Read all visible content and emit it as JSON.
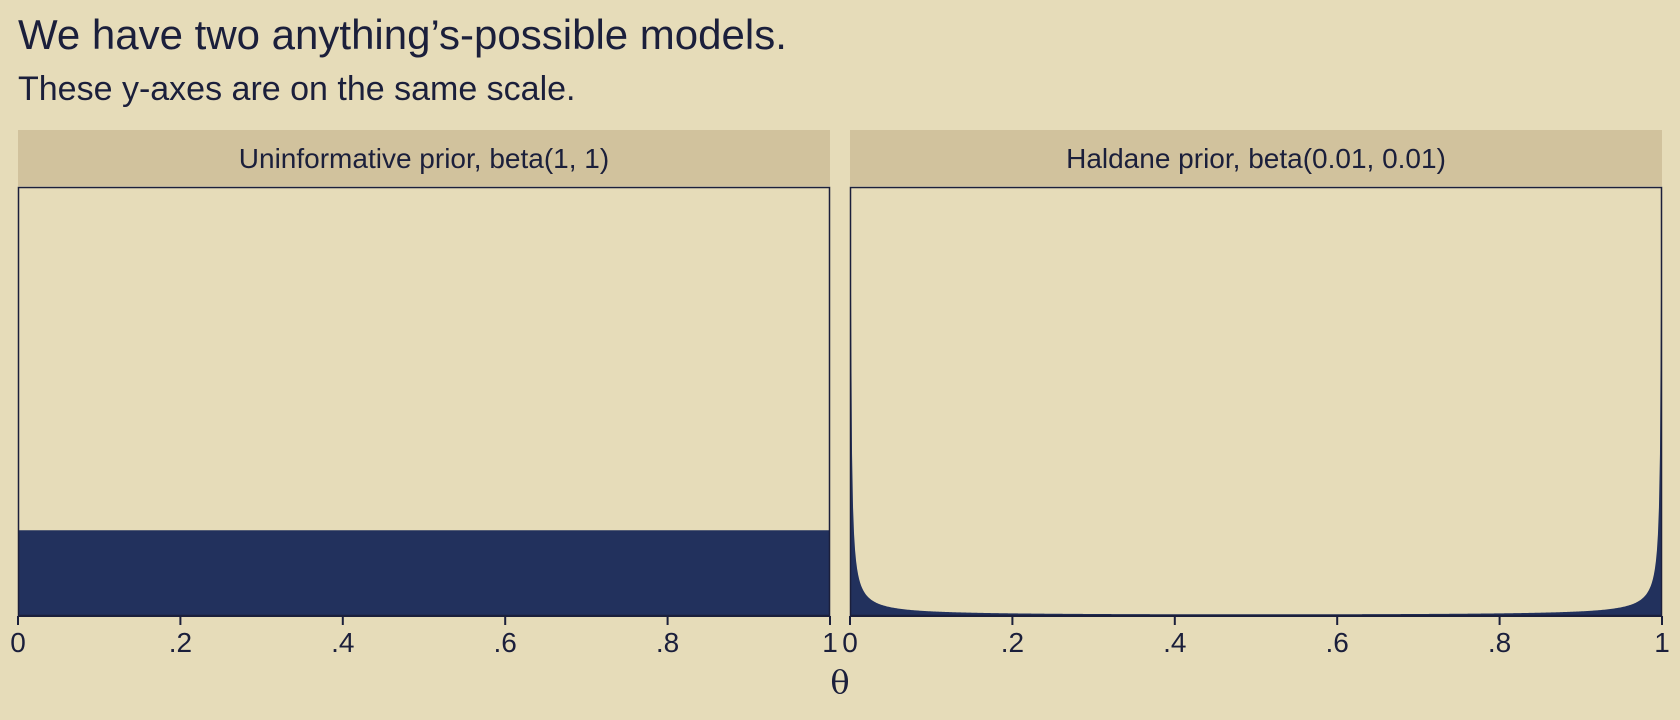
{
  "header": {
    "title": "We have two anything’s-possible models.",
    "subtitle": "These y-axes are on the same scale."
  },
  "colors": {
    "background": "#e6dcb9",
    "strip": "#d1c29d",
    "fill": "#22315d",
    "ink": "#1b1f3b"
  },
  "chart_data": {
    "type": "area",
    "xlabel": "θ",
    "xlim": [
      0,
      1
    ],
    "ylim": [
      0,
      5
    ],
    "shared_y_scale": true,
    "y_axis_visible": false,
    "grid": false,
    "x_ticks": [
      0,
      0.2,
      0.4,
      0.6,
      0.8,
      1
    ],
    "x_tick_labels": [
      "0",
      ".2",
      ".4",
      ".6",
      ".8",
      "1"
    ],
    "panels": [
      {
        "strip_label": "Uninformative prior, beta(1, 1)",
        "distribution": "beta",
        "alpha": 1,
        "beta": 1
      },
      {
        "strip_label": "Haldane prior, beta(0.01, 0.01)",
        "distribution": "beta",
        "alpha": 0.01,
        "beta": 0.01
      }
    ]
  }
}
